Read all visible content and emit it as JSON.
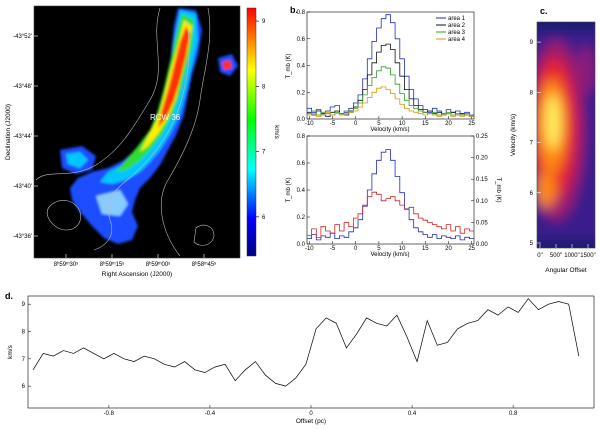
{
  "panels": {
    "a": {
      "label": "a.",
      "source_label": "RCW 36",
      "xlabel": "Right Ascension (J2000)",
      "ylabel": "Declination (J2000)",
      "x_ticks": [
        "8ʰ59ᵐ30ˢ",
        "8ʰ59ᵐ15ˢ",
        "8ʰ59ᵐ00ˢ",
        "8ʰ58ᵐ45ˢ"
      ],
      "y_ticks": [
        "-43°36'",
        "-43°40'",
        "-43°44'",
        "-43°48'",
        "-43°52'"
      ],
      "colorbar": {
        "unit": "km/s",
        "ticks": [
          "6",
          "7",
          "8",
          "9"
        ],
        "range": [
          5.4,
          9.2
        ]
      }
    },
    "b_top": {
      "label": "b.",
      "xlabel": "Velocity (km/s)",
      "ylabel": "T_mb (K)",
      "x_ticks": [
        "-10",
        "-5",
        "0",
        "5",
        "10",
        "15",
        "20",
        "25"
      ],
      "y_ticks": [
        "0.0",
        "0.1",
        "0.2",
        "0.3",
        "0.4",
        "0.5",
        "0.6",
        "0.7",
        "0.8"
      ],
      "legend": [
        "area 1",
        "area 2",
        "area 3",
        "area 4"
      ],
      "colors": [
        "#1f2dbd",
        "#111111",
        "#2e9e2e",
        "#d09a1a"
      ]
    },
    "b_bottom": {
      "xlabel": "Velocity (km/s)",
      "ylabel_left": "T_mb (K)",
      "ylabel_right": "T_mb (K)",
      "x_ticks": [
        "-10",
        "-5",
        "0",
        "5",
        "10",
        "15",
        "20",
        "25"
      ],
      "y_ticks_left": [
        "0.0",
        "0.1",
        "0.2",
        "0.3",
        "0.4",
        "0.5",
        "0.6",
        "0.7",
        "0.8"
      ],
      "y_ticks_right": [
        "0.00",
        "0.05",
        "0.10",
        "0.15",
        "0.20",
        "0.25"
      ],
      "colors": [
        "#1f2dbd",
        "#cc2222"
      ]
    },
    "c": {
      "label": "c.",
      "xlabel": "Angular Offset",
      "ylabel": "Velocity (km/s)",
      "x_ticks": [
        "0\"",
        "500\"",
        "1000\"",
        "1500\""
      ],
      "y_ticks": [
        "5",
        "6",
        "7",
        "8",
        "9"
      ]
    },
    "d": {
      "label": "d.",
      "xlabel": "Offset (pc)",
      "ylabel": "km/s",
      "x_ticks": [
        "-0.8",
        "-0.4",
        "0",
        "0.4",
        "0.8"
      ],
      "y_ticks": [
        "6",
        "7",
        "8",
        "9"
      ]
    }
  },
  "chart_data": [
    {
      "type": "heatmap",
      "panel": "a",
      "description_source": "velocity map",
      "colorbar_range": [
        5.4,
        9.2
      ]
    },
    {
      "type": "line",
      "panel": "b_top",
      "x": [
        -10,
        -9,
        -8,
        -7,
        -6,
        -5,
        -4,
        -3,
        -2,
        -1,
        0,
        1,
        2,
        3,
        4,
        5,
        6,
        7,
        8,
        9,
        10,
        11,
        12,
        13,
        14,
        15,
        16,
        17,
        18,
        19,
        20,
        21,
        22,
        23,
        24,
        25
      ],
      "xlim": [
        -10,
        25
      ],
      "ylim": [
        0,
        0.8
      ],
      "series": [
        {
          "name": "area 1",
          "values": [
            0.08,
            0.05,
            0.07,
            0.03,
            0.06,
            0.09,
            0.1,
            0.04,
            0.05,
            0.08,
            0.12,
            0.18,
            0.3,
            0.45,
            0.58,
            0.68,
            0.75,
            0.78,
            0.72,
            0.6,
            0.45,
            0.32,
            0.22,
            0.15,
            0.1,
            0.07,
            0.05,
            0.08,
            0.06,
            0.04,
            0.07,
            0.05,
            0.06,
            0.04,
            0.05,
            0.03
          ]
        },
        {
          "name": "area 2",
          "values": [
            0.05,
            0.03,
            0.06,
            0.04,
            0.02,
            0.05,
            0.06,
            0.04,
            0.03,
            0.06,
            0.09,
            0.14,
            0.22,
            0.33,
            0.42,
            0.5,
            0.55,
            0.56,
            0.52,
            0.42,
            0.32,
            0.22,
            0.15,
            0.1,
            0.07,
            0.05,
            0.06,
            0.04,
            0.05,
            0.03,
            0.04,
            0.05,
            0.03,
            0.04,
            0.03,
            0.02
          ]
        },
        {
          "name": "area 3",
          "values": [
            0.04,
            0.06,
            0.03,
            0.05,
            0.04,
            0.03,
            0.05,
            0.04,
            0.06,
            0.05,
            0.08,
            0.12,
            0.18,
            0.25,
            0.31,
            0.36,
            0.39,
            0.38,
            0.33,
            0.26,
            0.19,
            0.14,
            0.1,
            0.08,
            0.06,
            0.05,
            0.04,
            0.05,
            0.03,
            0.04,
            0.05,
            0.03,
            0.04,
            0.03,
            0.04,
            0.02
          ]
        },
        {
          "name": "area 4",
          "values": [
            0.03,
            0.04,
            0.02,
            0.03,
            0.05,
            0.03,
            0.04,
            0.03,
            0.04,
            0.05,
            0.06,
            0.09,
            0.12,
            0.16,
            0.2,
            0.23,
            0.24,
            0.22,
            0.19,
            0.15,
            0.11,
            0.08,
            0.06,
            0.05,
            0.04,
            0.03,
            0.04,
            0.03,
            0.02,
            0.03,
            0.04,
            0.02,
            0.03,
            0.02,
            0.03,
            0.02
          ]
        }
      ]
    },
    {
      "type": "line",
      "panel": "b_bottom",
      "x": [
        -10,
        -9,
        -8,
        -7,
        -6,
        -5,
        -4,
        -3,
        -2,
        -1,
        0,
        1,
        2,
        3,
        4,
        5,
        6,
        7,
        8,
        9,
        10,
        11,
        12,
        13,
        14,
        15,
        16,
        17,
        18,
        19,
        20,
        21,
        22,
        23,
        24,
        25
      ],
      "xlim": [
        -10,
        25
      ],
      "ylim_left": [
        0,
        0.8
      ],
      "ylim_right": [
        0,
        0.25
      ],
      "series": [
        {
          "axis": "left",
          "values": [
            0.04,
            0.07,
            0.03,
            0.06,
            0.05,
            0.08,
            0.04,
            0.06,
            0.05,
            0.09,
            0.12,
            0.18,
            0.28,
            0.4,
            0.52,
            0.62,
            0.68,
            0.7,
            0.62,
            0.5,
            0.38,
            0.26,
            0.18,
            0.12,
            0.09,
            0.07,
            0.05,
            0.07,
            0.04,
            0.06,
            0.05,
            0.04,
            0.06,
            0.03,
            0.05,
            0.04
          ]
        },
        {
          "axis": "right",
          "values": [
            0.02,
            0.035,
            0.015,
            0.04,
            0.03,
            0.025,
            0.045,
            0.03,
            0.05,
            0.04,
            0.06,
            0.07,
            0.09,
            0.11,
            0.12,
            0.115,
            0.1,
            0.105,
            0.11,
            0.1,
            0.09,
            0.08,
            0.085,
            0.07,
            0.06,
            0.055,
            0.05,
            0.045,
            0.04,
            0.035,
            0.045,
            0.03,
            0.04,
            0.025,
            0.035,
            0.03
          ]
        }
      ]
    },
    {
      "type": "heatmap",
      "panel": "c",
      "description_source": "position-velocity diagram",
      "ylim": [
        4.9,
        9.4
      ]
    },
    {
      "type": "line",
      "panel": "d",
      "x": [
        -1.1,
        -1.06,
        -1.02,
        -0.98,
        -0.94,
        -0.9,
        -0.86,
        -0.82,
        -0.78,
        -0.74,
        -0.7,
        -0.66,
        -0.62,
        -0.58,
        -0.54,
        -0.5,
        -0.46,
        -0.42,
        -0.38,
        -0.34,
        -0.3,
        -0.26,
        -0.22,
        -0.18,
        -0.14,
        -0.1,
        -0.06,
        -0.02,
        0.02,
        0.06,
        0.1,
        0.14,
        0.18,
        0.22,
        0.26,
        0.3,
        0.34,
        0.38,
        0.42,
        0.46,
        0.5,
        0.54,
        0.58,
        0.62,
        0.66,
        0.7,
        0.74,
        0.78,
        0.82,
        0.86,
        0.9,
        0.94,
        0.98,
        1.02,
        1.06
      ],
      "xlim": [
        -1.12,
        1.12
      ],
      "ylim": [
        5.2,
        9.3
      ],
      "values": [
        6.6,
        7.2,
        7.1,
        7.3,
        7.2,
        7.4,
        7.2,
        7.0,
        7.2,
        7.0,
        6.9,
        7.1,
        7.0,
        6.8,
        6.7,
        6.9,
        6.6,
        6.5,
        6.7,
        6.8,
        6.2,
        6.6,
        6.9,
        6.4,
        6.1,
        6.0,
        6.3,
        6.8,
        8.1,
        8.5,
        8.3,
        7.4,
        7.9,
        8.5,
        8.3,
        8.2,
        8.6,
        7.8,
        6.9,
        8.4,
        7.5,
        7.6,
        8.1,
        8.3,
        8.4,
        8.8,
        8.6,
        8.9,
        8.7,
        9.2,
        8.8,
        9.0,
        9.1,
        9.0,
        7.1
      ]
    }
  ]
}
